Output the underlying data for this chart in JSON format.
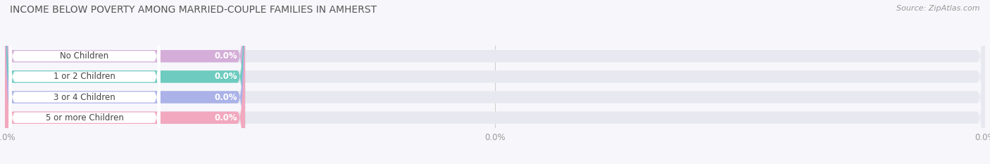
{
  "title": "INCOME BELOW POVERTY AMONG MARRIED-COUPLE FAMILIES IN AMHERST",
  "source": "Source: ZipAtlas.com",
  "categories": [
    "No Children",
    "1 or 2 Children",
    "3 or 4 Children",
    "5 or more Children"
  ],
  "values": [
    0.0,
    0.0,
    0.0,
    0.0
  ],
  "bar_colors": [
    "#d4aed8",
    "#6dcbbf",
    "#aab2e8",
    "#f2a8be"
  ],
  "bg_color": "#f7f7fb",
  "bar_bg_color": "#e8e8f0",
  "value_label": "0.0%",
  "title_fontsize": 10,
  "source_fontsize": 8,
  "label_fontsize": 8.5,
  "tick_label": "0.0%",
  "tick_color": "#999999"
}
